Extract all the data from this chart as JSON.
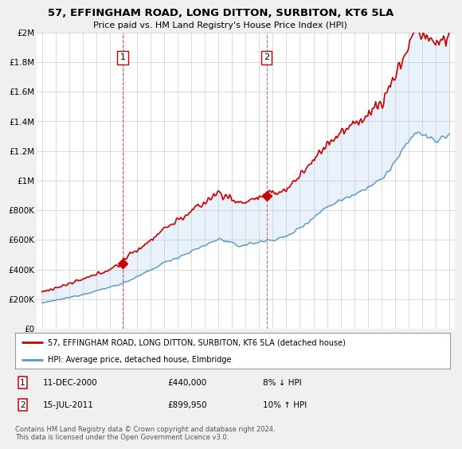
{
  "title": "57, EFFINGHAM ROAD, LONG DITTON, SURBITON, KT6 5LA",
  "subtitle": "Price paid vs. HM Land Registry's House Price Index (HPI)",
  "ylim": [
    0,
    2000000
  ],
  "yticks": [
    0,
    200000,
    400000,
    600000,
    800000,
    1000000,
    1200000,
    1400000,
    1600000,
    1800000,
    2000000
  ],
  "ytick_labels": [
    "£0",
    "£200K",
    "£400K",
    "£600K",
    "£800K",
    "£1M",
    "£1.2M",
    "£1.4M",
    "£1.6M",
    "£1.8M",
    "£2M"
  ],
  "sale1_year": 2000.95,
  "sale1_price": 440000,
  "sale2_year": 2011.54,
  "sale2_price": 899950,
  "hpi_color": "#aaccee",
  "hpi_line_color": "#5599cc",
  "sale_color": "#cc0000",
  "vline_color": "#cc0000",
  "legend_sale_label": "57, EFFINGHAM ROAD, LONG DITTON, SURBITON, KT6 5LA (detached house)",
  "legend_hpi_label": "HPI: Average price, detached house, Elmbridge",
  "footnote": "Contains HM Land Registry data © Crown copyright and database right 2024.\nThis data is licensed under the Open Government Licence v3.0.",
  "bg_color": "#f0f0f0",
  "plot_bg_color": "#ffffff"
}
